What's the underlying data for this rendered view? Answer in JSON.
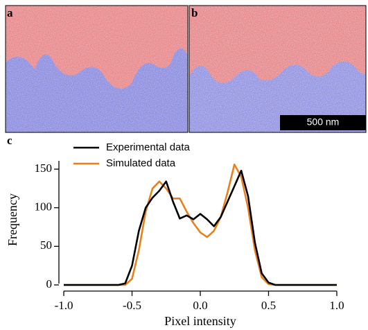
{
  "panels": [
    {
      "label": "a"
    },
    {
      "label": "b",
      "scale_bar": "500 nm"
    },
    {
      "label": "c"
    }
  ],
  "chart_data": {
    "type": "line",
    "x_label": "Pixel intensity",
    "y_label": "Frequency",
    "x": [
      -1.0,
      -0.95,
      -0.9,
      -0.85,
      -0.8,
      -0.75,
      -0.7,
      -0.65,
      -0.6,
      -0.55,
      -0.5,
      -0.45,
      -0.4,
      -0.35,
      -0.3,
      -0.25,
      -0.2,
      -0.15,
      -0.1,
      -0.05,
      0.0,
      0.05,
      0.1,
      0.15,
      0.2,
      0.25,
      0.3,
      0.35,
      0.4,
      0.45,
      0.5,
      0.55,
      0.6,
      0.65,
      0.7,
      0.75,
      0.8,
      0.85,
      0.9,
      0.95,
      1.0
    ],
    "series": [
      {
        "name": "Experimental data",
        "color": "#000000",
        "values": [
          0,
          0,
          0,
          0,
          0,
          0,
          0,
          0,
          0,
          2,
          25,
          70,
          100,
          113,
          122,
          134,
          108,
          86,
          90,
          85,
          92,
          85,
          76,
          88,
          108,
          128,
          148,
          115,
          55,
          15,
          3,
          0,
          0,
          0,
          0,
          0,
          0,
          0,
          0,
          0,
          0
        ]
      },
      {
        "name": "Simulated data",
        "color": "#e8801c",
        "values": [
          0,
          0,
          0,
          0,
          0,
          0,
          0,
          0,
          0,
          0,
          8,
          45,
          95,
          125,
          134,
          125,
          112,
          112,
          95,
          80,
          68,
          62,
          70,
          88,
          120,
          156,
          140,
          100,
          45,
          10,
          1,
          0,
          0,
          0,
          0,
          0,
          0,
          0,
          0,
          0,
          0
        ]
      }
    ],
    "xlim": [
      -1.02,
      1.02
    ],
    "ylim": [
      -8,
      170
    ],
    "xticks": [
      {
        "value": -1,
        "label": "-1.0"
      },
      -0.5,
      {
        "value": 0,
        "label": "0.0"
      },
      0.5,
      {
        "value": 1,
        "label": "1.0"
      }
    ],
    "yticks": [
      0,
      50,
      100,
      150
    ]
  }
}
